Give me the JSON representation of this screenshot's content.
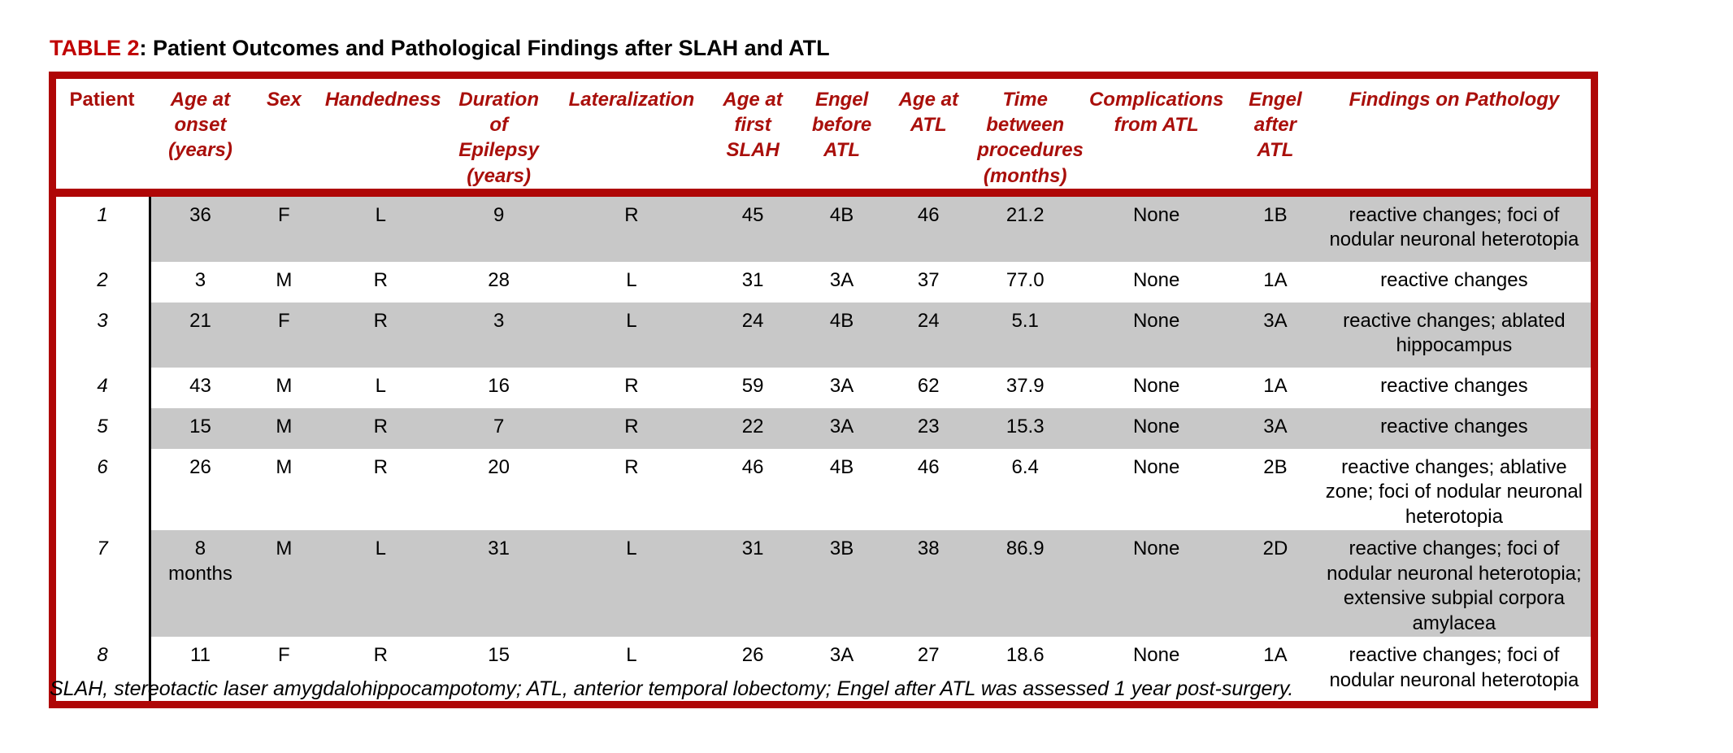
{
  "title": {
    "label": "TABLE 2",
    "text": ": Patient Outcomes and Pathological Findings after SLAH and ATL"
  },
  "colors": {
    "accent_red": "#AF0606",
    "header_text_red": "#A90F0B",
    "title_red": "#C00000",
    "row_gray": "#C8C8C8"
  },
  "table": {
    "columns": [
      {
        "id": "patient",
        "label": "Patient"
      },
      {
        "id": "age-at-onset",
        "label": "Age at onset (years)"
      },
      {
        "id": "sex",
        "label": "Sex"
      },
      {
        "id": "handedness",
        "label": "Handedness"
      },
      {
        "id": "duration-of-epilepsy",
        "label": "Duration of Epilepsy (years)"
      },
      {
        "id": "lateralization",
        "label": "Lateralization"
      },
      {
        "id": "age-at-first-slah",
        "label": "Age at first SLAH"
      },
      {
        "id": "engel-before-atl",
        "label": "Engel before ATL"
      },
      {
        "id": "age-at-atl",
        "label": "Age at ATL"
      },
      {
        "id": "time-between-procedures",
        "label": "Time between procedures (months)"
      },
      {
        "id": "complications-from-atl",
        "label": "Complications from ATL"
      },
      {
        "id": "engel-after-atl",
        "label": "Engel after ATL"
      },
      {
        "id": "findings-on-pathology",
        "label": "Findings on Pathology"
      }
    ],
    "rows": [
      {
        "cells": [
          "1",
          "36",
          "F",
          "L",
          "9",
          "R",
          "45",
          "4B",
          "46",
          "21.2",
          "None",
          "1B",
          "reactive changes; foci of nodular neuronal heterotopia"
        ]
      },
      {
        "cells": [
          "2",
          "3",
          "M",
          "R",
          "28",
          "L",
          "31",
          "3A",
          "37",
          "77.0",
          "None",
          "1A",
          "reactive changes"
        ]
      },
      {
        "cells": [
          "3",
          "21",
          "F",
          "R",
          "3",
          "L",
          "24",
          "4B",
          "24",
          "5.1",
          "None",
          "3A",
          "reactive changes; ablated hippocampus"
        ]
      },
      {
        "cells": [
          "4",
          "43",
          "M",
          "L",
          "16",
          "R",
          "59",
          "3A",
          "62",
          "37.9",
          "None",
          "1A",
          "reactive changes"
        ]
      },
      {
        "cells": [
          "5",
          "15",
          "M",
          "R",
          "7",
          "R",
          "22",
          "3A",
          "23",
          "15.3",
          "None",
          "3A",
          "reactive changes"
        ]
      },
      {
        "cells": [
          "6",
          "26",
          "M",
          "R",
          "20",
          "R",
          "46",
          "4B",
          "46",
          "6.4",
          "None",
          "2B",
          "reactive changes; ablative zone; foci of nodular neuronal heterotopia"
        ]
      },
      {
        "cells": [
          "7",
          "8\nmonths",
          "M",
          "L",
          "31",
          "L",
          "31",
          "3B",
          "38",
          "86.9",
          "None",
          "2D",
          "reactive changes; foci of nodular neuronal heterotopia; extensive subpial corpora amylacea"
        ]
      },
      {
        "cells": [
          "8",
          "11",
          "F",
          "R",
          "15",
          "L",
          "26",
          "3A",
          "27",
          "18.6",
          "None",
          "1A",
          "reactive changes; foci of nodular neuronal heterotopia"
        ]
      }
    ]
  },
  "footnote": "SLAH, stereotactic laser amygdalohippocampotomy; ATL, anterior temporal lobectomy; Engel after ATL was assessed 1 year post-surgery."
}
